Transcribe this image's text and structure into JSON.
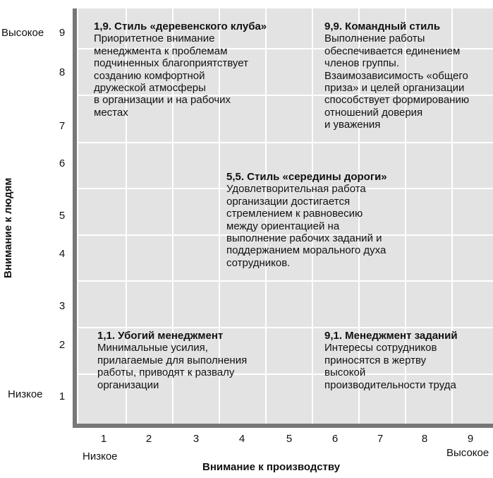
{
  "axes": {
    "y_title": "Внимание к людям",
    "x_title": "Внимание к производству",
    "y_low": "Низкое",
    "y_high": "Высокое",
    "x_low": "Низкое",
    "x_high": "Высокое",
    "y_ticks": [
      "9",
      "8",
      "7",
      "6",
      "5",
      "4",
      "3",
      "2",
      "1"
    ],
    "x_ticks": [
      "1",
      "2",
      "3",
      "4",
      "5",
      "6",
      "7",
      "8",
      "9"
    ]
  },
  "styles": {
    "country_club": {
      "title": "1,9. Стиль «деревенского клуба»",
      "body": "Приоритетное внимание\nменеджмента к проблемам\nподчиненных благоприятствует\nсозданию комфортной\nдружеской атмосферы\nв организации и на рабочих\nместах"
    },
    "team": {
      "title": "9,9. Командный стиль",
      "body": "Выполнение работы\nобеспечивается единением\nчленов группы.\nВзаимозависимость «общего\nприза» и целей организации\nспособствует формированию\nотношений доверия\nи уважения"
    },
    "middle_road": {
      "title": "5,5. Стиль «середины дороги»",
      "body": "Удовлетворительная работа\nорганизации достигается\nстремлением к равновесию\nмежду ориентацией на\nвыполнение рабочих заданий и\nподдержанием морального духа\nсотрудников."
    },
    "impoverished": {
      "title": "1,1. Убогий менеджмент",
      "body": "Минимальные усилия,\nприлагаемые для выполнения\nработы, приводят к развалу\nорганизации"
    },
    "task": {
      "title": "9,1. Менеджмент заданий",
      "body": "Интересы сотрудников\nприносятся в жертву\nвысокой\nпроизводительности труда"
    }
  },
  "colors": {
    "background_panel": "#e3e3e3",
    "grid_lines": "#ffffff",
    "axis": "#777777",
    "text": "#111111"
  }
}
